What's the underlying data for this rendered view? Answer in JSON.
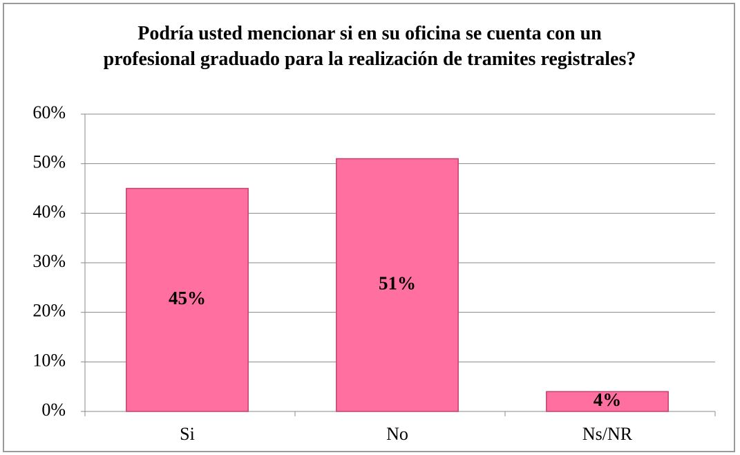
{
  "chart_data": {
    "type": "bar",
    "title": "Podría usted mencionar si en su oficina se cuenta con un profesional graduado  para la realización de tramites registrales?",
    "categories": [
      "Si",
      "No",
      "Ns/NR"
    ],
    "values": [
      45,
      51,
      4
    ],
    "value_labels": [
      "45%",
      "51%",
      "4%"
    ],
    "color": "#ff6fa0",
    "ylim": [
      0,
      60
    ],
    "yticks": [
      {
        "value": 0,
        "label": "0%"
      },
      {
        "value": 10,
        "label": "10%"
      },
      {
        "value": 20,
        "label": "20%"
      },
      {
        "value": 30,
        "label": "30%"
      },
      {
        "value": 40,
        "label": "40%"
      },
      {
        "value": 50,
        "label": "50%"
      },
      {
        "value": 60,
        "label": "60%"
      }
    ],
    "grid": true
  }
}
